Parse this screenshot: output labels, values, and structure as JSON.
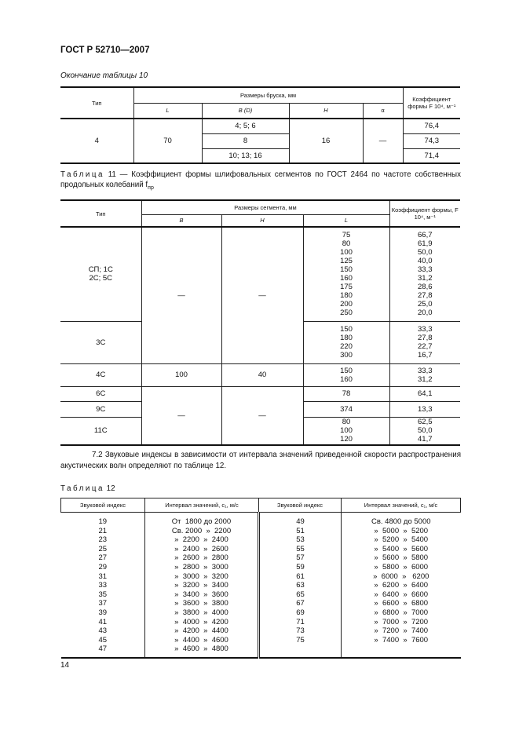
{
  "header": {
    "title": "ГОСТ Р 52710—2007"
  },
  "table10": {
    "caption": "Окончание таблицы 10",
    "headers": {
      "type": "Тип",
      "group": "Размеры бруска, мм",
      "L": "L",
      "B": "B (D)",
      "H": "H",
      "alpha": "α",
      "coef": "Коэффициент формы F  10⁴, м⁻¹"
    },
    "row": {
      "type": "4",
      "L": "70",
      "B": [
        "4; 5; 6",
        "8",
        "10; 13; 16"
      ],
      "H": "16",
      "alpha": "—",
      "coef": [
        "76,4",
        "74,3",
        "71,4"
      ]
    }
  },
  "table11": {
    "caption_label": "Таблица",
    "caption": " 11 — Коэффициент формы шлифовальных сегментов по ГОСТ 2464 по частоте собственных продольных колебаний f",
    "caption_sub": "пр",
    "headers": {
      "type": "Тип",
      "group": "Размеры сегмента, мм",
      "B": "B",
      "H": "H",
      "L": "L",
      "coef": "Коэффициент формы, F  10⁴, м⁻¹"
    },
    "groups": [
      {
        "type": "СП; 1С\n2С; 5С",
        "B": "—",
        "H": "—",
        "L": [
          "75",
          "80",
          "100",
          "125",
          "150",
          "160",
          "175",
          "180",
          "200",
          "250"
        ],
        "coef": [
          "66,7",
          "61,9",
          "50,0",
          "40,0",
          "33,3",
          "31,2",
          "28,6",
          "27,8",
          "25,0",
          "20,0"
        ]
      },
      {
        "type": "3С",
        "L": [
          "150",
          "180",
          "220",
          "300"
        ],
        "coef": [
          "33,3",
          "27,8",
          "22,7",
          "16,7"
        ]
      },
      {
        "type": "4С",
        "B": "100",
        "H": "40",
        "L": [
          "150",
          "160"
        ],
        "coef": [
          "33,3",
          "31,2"
        ]
      },
      {
        "type": "6С",
        "B": "—",
        "H": "—",
        "L": [
          "78"
        ],
        "coef": [
          "64,1"
        ]
      },
      {
        "type": "9С",
        "L": [
          "374"
        ],
        "coef": [
          "13,3"
        ]
      },
      {
        "type": "11С",
        "L": [
          "80",
          "100",
          "120"
        ],
        "coef": [
          "62,5",
          "50,0",
          "41,7"
        ]
      }
    ]
  },
  "paragraph": "7.2 Звуковые индексы в зависимости от интервала значений приведенной скорости распространения акустических волн определяют по таблице 12.",
  "table12": {
    "caption_label": "Таблица",
    "caption_num": " 12",
    "headers": {
      "index": "Звуковой индекс",
      "interval": "Интервал значений, c₁, м/с"
    },
    "left": [
      [
        "19",
        "От  1800 до 2000"
      ],
      [
        "21",
        "Св. 2000  »  2200"
      ],
      [
        "23",
        "»  2200  »  2400"
      ],
      [
        "25",
        "»  2400  »  2600"
      ],
      [
        "27",
        "»  2600  »  2800"
      ],
      [
        "29",
        "»  2800  »  3000"
      ],
      [
        "31",
        "»  3000  »  3200"
      ],
      [
        "33",
        "»  3200  »  3400"
      ],
      [
        "35",
        "»  3400  »  3600"
      ],
      [
        "37",
        "»  3600  »  3800"
      ],
      [
        "39",
        "»  3800  »  4000"
      ],
      [
        "41",
        "»  4000  »  4200"
      ],
      [
        "43",
        "»  4200  »  4400"
      ],
      [
        "45",
        "»  4400  »  4600"
      ],
      [
        "47",
        "»  4600  »  4800"
      ]
    ],
    "right": [
      [
        "49",
        "Св. 4800 до 5000"
      ],
      [
        "51",
        "»  5000  »  5200"
      ],
      [
        "53",
        "»  5200  »  5400"
      ],
      [
        "55",
        "»  5400  »  5600"
      ],
      [
        "57",
        "»  5600  »  5800"
      ],
      [
        "59",
        "»  5800  »  6000"
      ],
      [
        "61",
        "»  6000  »   6200"
      ],
      [
        "63",
        "»  6200  »  6400"
      ],
      [
        "65",
        "»  6400  »  6600"
      ],
      [
        "67",
        "»  6600  »  6800"
      ],
      [
        "69",
        "»  6800  »  7000"
      ],
      [
        "71",
        "»  7000  »  7200"
      ],
      [
        "73",
        "»  7200  »  7400"
      ],
      [
        "75",
        "»  7400  »  7600"
      ]
    ]
  },
  "page_number": "14"
}
